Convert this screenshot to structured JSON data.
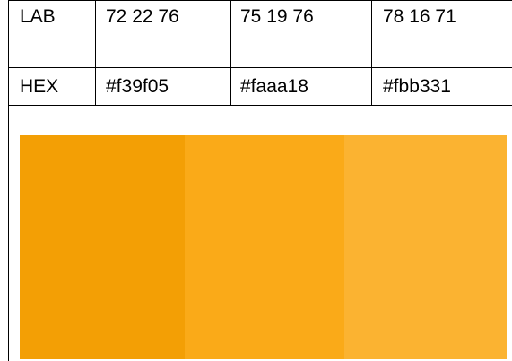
{
  "table": {
    "rows": [
      {
        "label": "LAB",
        "values": [
          "72 22 76",
          "75 19 76",
          "78 16 71"
        ]
      },
      {
        "label": "HEX",
        "values": [
          "#f39f05",
          "#faaa18",
          "#fbb331"
        ]
      }
    ]
  },
  "swatches": [
    {
      "color": "#f39f05"
    },
    {
      "color": "#faaa18"
    },
    {
      "color": "#fbb331"
    }
  ]
}
